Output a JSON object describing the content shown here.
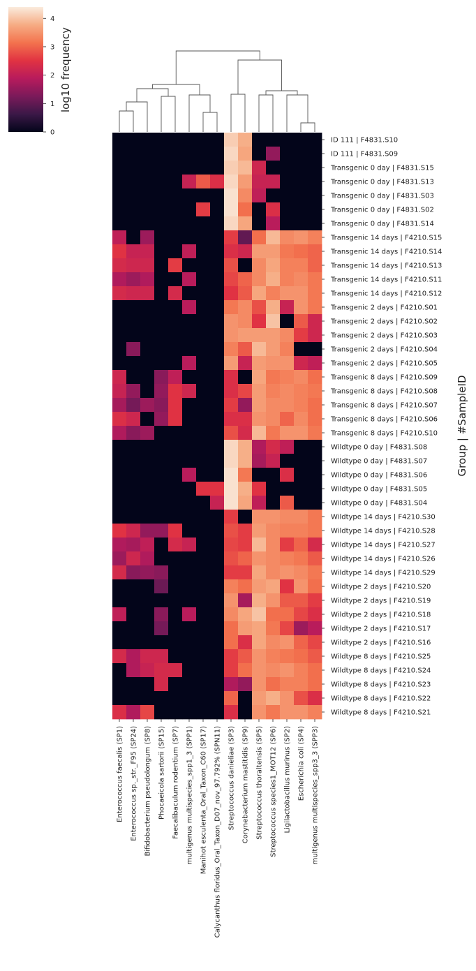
{
  "chart_data": {
    "type": "heatmap",
    "title": "",
    "xlabel": "",
    "ylabel": "Group | #SampleID",
    "colorbar": {
      "label": "log10 frequency",
      "ticks": [
        0,
        1,
        2,
        3,
        4
      ],
      "range": [
        0,
        4.4
      ],
      "colormap": "rocket",
      "stops": [
        "#03051a",
        "#3b1847",
        "#7b1a5a",
        "#b81b5c",
        "#e13342",
        "#f3734e",
        "#f6ac84",
        "#faebdd"
      ]
    },
    "columns": [
      "Enterococcus faecalis (SP1)",
      "Enterococcus sp._str._F95 (SP24)",
      "Bifidobacterium pseudolongum (SP8)",
      "Phocaeicola sartorii (SP15)",
      "Faecalibaculum rodentium (SP7)",
      "multigenus multispecies_spp1_3 (SPP1)",
      "Manihot esculenta_Oral_Taxon_C60 (SP17)",
      "Calycanthus floridus_Oral_Taxon_D07_nov_97.792% (SPN11)",
      "Streptococcus danieliae (SP3)",
      "Corynebacterium mastitidis (SP9)",
      "Streptococcus thoraltensis (SP5)",
      "Streptococcus species1_MOT12 (SP6)",
      "Ligilactobacillus murinus (SP2)",
      "Escherichia coli (SP4)",
      "multigenus multispecies_spp3_3 (SPP3)"
    ],
    "rows": [
      "ID 111 | F4831.S10",
      "ID 111 | F4831.S09",
      "Transgenic 0 day | F4831.S15",
      "Transgenic 0 day | F4831.S13",
      "Transgenic 0 day | F4831.S03",
      "Transgenic 0 day | F4831.S02",
      "Transgenic 0 day | F4831.S14",
      "Transgenic 14 days | F4210.S15",
      "Transgenic 14 days | F4210.S14",
      "Transgenic 14 days | F4210.S13",
      "Transgenic 14 days | F4210.S11",
      "Transgenic 14 days | F4210.S12",
      "Transgenic 2 days | F4210.S01",
      "Transgenic 2 days | F4210.S02",
      "Transgenic 2 days | F4210.S03",
      "Transgenic 2 days | F4210.S04",
      "Transgenic 2 days | F4210.S05",
      "Transgenic 8 days | F4210.S09",
      "Transgenic 8 days | F4210.S08",
      "Transgenic 8 days | F4210.S07",
      "Transgenic 8 days | F4210.S06",
      "Transgenic 8 days | F4210.S10",
      "Wildtype 0 day | F4831.S08",
      "Wildtype 0 day | F4831.S07",
      "Wildtype 0 day | F4831.S06",
      "Wildtype 0 day | F4831.S05",
      "Wildtype 0 day | F4831.S04",
      "Wildtype 14 days | F4210.S30",
      "Wildtype 14 days | F4210.S28",
      "Wildtype 14 days | F4210.S27",
      "Wildtype 14 days | F4210.S26",
      "Wildtype 14 days | F4210.S29",
      "Wildtype 2 days | F4210.S20",
      "Wildtype 2 days | F4210.S19",
      "Wildtype 2 days | F4210.S18",
      "Wildtype 2 days | F4210.S17",
      "Wildtype 2 days | F4210.S16",
      "Wildtype 8 days | F4210.S25",
      "Wildtype 8 days | F4210.S24",
      "Wildtype 8 days | F4210.S23",
      "Wildtype 8 days | F4210.S22",
      "Wildtype 8 days | F4210.S21"
    ],
    "values": [
      [
        0,
        0,
        0,
        0,
        0,
        0,
        0,
        0,
        4.1,
        3.8,
        0,
        0,
        0,
        0,
        0
      ],
      [
        0,
        0,
        0,
        0,
        0,
        0,
        0,
        0,
        4.2,
        3.7,
        0,
        1.5,
        0,
        0,
        0
      ],
      [
        0,
        0,
        0,
        0,
        0,
        0,
        0,
        0,
        4.1,
        3.9,
        2.2,
        0,
        0,
        0,
        0
      ],
      [
        0,
        0,
        0,
        0,
        0,
        2.1,
        2.9,
        2.4,
        4.2,
        3.6,
        2.1,
        2.1,
        0,
        0,
        0
      ],
      [
        0,
        0,
        0,
        0,
        0,
        0,
        0,
        0,
        4.3,
        3.4,
        2.0,
        0,
        0,
        0,
        0
      ],
      [
        0,
        0,
        0,
        0,
        0,
        0,
        2.6,
        0,
        4.3,
        3.1,
        0,
        2.4,
        0,
        0,
        0
      ],
      [
        0,
        0,
        0,
        0,
        0,
        0,
        0,
        0,
        4.2,
        3.7,
        0,
        1.9,
        0,
        0,
        0
      ],
      [
        2.0,
        0,
        1.6,
        0,
        0,
        0,
        0,
        0,
        2.6,
        1.0,
        3.1,
        3.9,
        3.4,
        3.5,
        3.3
      ],
      [
        2.5,
        2.1,
        2.1,
        0,
        0,
        2.0,
        0,
        0,
        2.4,
        2.2,
        3.6,
        3.6,
        3.2,
        3.1,
        3.0
      ],
      [
        2.3,
        2.2,
        2.2,
        0,
        2.6,
        0,
        0,
        0,
        2.8,
        0,
        3.4,
        3.7,
        3.3,
        3.3,
        3.0
      ],
      [
        1.8,
        1.6,
        1.8,
        0,
        0,
        1.9,
        0,
        0,
        2.7,
        3.0,
        3.4,
        3.8,
        3.3,
        3.4,
        3.2
      ],
      [
        2.3,
        2.2,
        2.2,
        0,
        2.3,
        0,
        0,
        0,
        2.5,
        2.9,
        3.7,
        3.3,
        3.5,
        3.5,
        3.2
      ],
      [
        0,
        0,
        0,
        0,
        0,
        1.9,
        0,
        0,
        3.2,
        3.4,
        2.8,
        3.8,
        2.1,
        3.5,
        3.2
      ],
      [
        0,
        0,
        0,
        0,
        0,
        0,
        0,
        0,
        3.5,
        3.4,
        2.5,
        4.0,
        0,
        2.9,
        2.2
      ],
      [
        0,
        0,
        0,
        0,
        0,
        0,
        0,
        0,
        3.5,
        3.6,
        3.6,
        3.6,
        3.4,
        2.6,
        2.2
      ],
      [
        0,
        1.4,
        0,
        0,
        0,
        0,
        0,
        0,
        3.3,
        2.9,
        3.9,
        3.6,
        3.3,
        0,
        0
      ],
      [
        0,
        0,
        0,
        0,
        0,
        1.9,
        0,
        0,
        3.6,
        2.1,
        3.6,
        3.5,
        3.5,
        2.2,
        2.0
      ],
      [
        2.2,
        0,
        0,
        1.4,
        2.0,
        0,
        0,
        0,
        2.4,
        0,
        3.7,
        3.2,
        3.3,
        3.4,
        3.1
      ],
      [
        2.1,
        1.5,
        0,
        1.5,
        2.5,
        2.2,
        0,
        0,
        2.4,
        2.7,
        3.6,
        3.3,
        3.4,
        3.3,
        3.2
      ],
      [
        1.7,
        1.2,
        1.6,
        1.4,
        2.5,
        0,
        0,
        0,
        2.6,
        1.5,
        3.6,
        3.4,
        3.4,
        3.3,
        3.1
      ],
      [
        2.4,
        2.2,
        0,
        1.5,
        2.5,
        0,
        0,
        0,
        2.4,
        2.4,
        3.5,
        3.4,
        3.0,
        3.4,
        3.1
      ],
      [
        1.8,
        1.4,
        1.6,
        0,
        0,
        0,
        0,
        0,
        2.8,
        2.3,
        3.9,
        3.2,
        3.5,
        3.5,
        3.2
      ],
      [
        0,
        0,
        0,
        0,
        0,
        0,
        0,
        0,
        4.2,
        3.8,
        1.8,
        2.3,
        2.0,
        0,
        0
      ],
      [
        0,
        0,
        0,
        0,
        0,
        0,
        0,
        0,
        4.2,
        3.8,
        1.7,
        2.1,
        0,
        0,
        0
      ],
      [
        0,
        0,
        0,
        0,
        0,
        1.9,
        0,
        0,
        4.3,
        3.2,
        0,
        0,
        2.4,
        0,
        0
      ],
      [
        0,
        0,
        0,
        0,
        0,
        0,
        2.5,
        2.5,
        4.3,
        3.8,
        2.5,
        0,
        0,
        0,
        0
      ],
      [
        0,
        0,
        0,
        0,
        0,
        0,
        0,
        2.1,
        4.3,
        3.7,
        2.0,
        0,
        2.9,
        0,
        0
      ],
      [
        0,
        0,
        0,
        0,
        0,
        0,
        0,
        0,
        2.6,
        0,
        3.5,
        3.5,
        3.4,
        3.4,
        3.2
      ],
      [
        2.5,
        2.2,
        1.5,
        1.5,
        2.5,
        0,
        0,
        0,
        2.8,
        2.6,
        3.6,
        3.4,
        3.3,
        3.3,
        3.2
      ],
      [
        1.8,
        1.7,
        2.0,
        0,
        2.3,
        2.1,
        0,
        0,
        2.7,
        2.6,
        3.9,
        3.4,
        2.6,
        3.0,
        2.3
      ],
      [
        1.6,
        2.2,
        1.8,
        0,
        0,
        0,
        0,
        0,
        2.8,
        3.0,
        3.5,
        3.4,
        3.3,
        3.2,
        2.9
      ],
      [
        2.3,
        1.4,
        1.5,
        1.4,
        0,
        0,
        0,
        0,
        2.6,
        2.6,
        3.7,
        3.4,
        3.5,
        3.4,
        3.2
      ],
      [
        0,
        0,
        0,
        1.1,
        0,
        0,
        0,
        0,
        3.3,
        3.1,
        3.6,
        3.7,
        2.5,
        3.5,
        3.1
      ],
      [
        0,
        0,
        0,
        0,
        0,
        0,
        0,
        0,
        3.5,
        1.7,
        3.8,
        3.5,
        2.9,
        2.9,
        2.6
      ],
      [
        2.0,
        0,
        0,
        1.4,
        0,
        1.9,
        0,
        0,
        3.4,
        3.7,
        4.0,
        3.1,
        3.1,
        2.7,
        2.4
      ],
      [
        0,
        0,
        0,
        1.2,
        0,
        0,
        0,
        0,
        3.1,
        3.6,
        3.7,
        3.2,
        2.7,
        1.6,
        1.9
      ],
      [
        0,
        0,
        0,
        0,
        0,
        0,
        0,
        0,
        3.1,
        2.4,
        3.7,
        3.4,
        3.5,
        3.0,
        2.7
      ],
      [
        2.3,
        1.8,
        2.2,
        2.2,
        0,
        0,
        0,
        0,
        2.6,
        2.9,
        3.5,
        3.3,
        3.2,
        3.1,
        2.9
      ],
      [
        0,
        1.8,
        2.1,
        2.3,
        2.3,
        0,
        0,
        0,
        2.6,
        3.1,
        3.5,
        3.4,
        3.5,
        3.3,
        3.1
      ],
      [
        0,
        0,
        0,
        2.3,
        0,
        0,
        0,
        0,
        1.8,
        1.5,
        3.5,
        3.1,
        3.3,
        3.3,
        3.1
      ],
      [
        0,
        0,
        0,
        0,
        0,
        0,
        0,
        0,
        3.0,
        0,
        3.6,
        3.8,
        3.5,
        2.8,
        2.4
      ],
      [
        2.4,
        1.8,
        2.7,
        0,
        0,
        0,
        0,
        0,
        2.4,
        0,
        3.5,
        3.2,
        3.5,
        3.5,
        3.3
      ]
    ],
    "column_dendrogram": [
      [
        0,
        1,
        3.0
      ],
      [
        15,
        2,
        4.3
      ],
      [
        3,
        4,
        5.1
      ],
      [
        16,
        17,
        6.2
      ],
      [
        6,
        7,
        2.8
      ],
      [
        5,
        19,
        5.3
      ],
      [
        18,
        20,
        6.8
      ],
      [
        10,
        11,
        5.3
      ],
      [
        13,
        14,
        1.3
      ],
      [
        12,
        23,
        5.3
      ],
      [
        22,
        24,
        5.9
      ],
      [
        8,
        9,
        5.4
      ],
      [
        25,
        26,
        10.3
      ],
      [
        21,
        27,
        11.6
      ]
    ]
  }
}
